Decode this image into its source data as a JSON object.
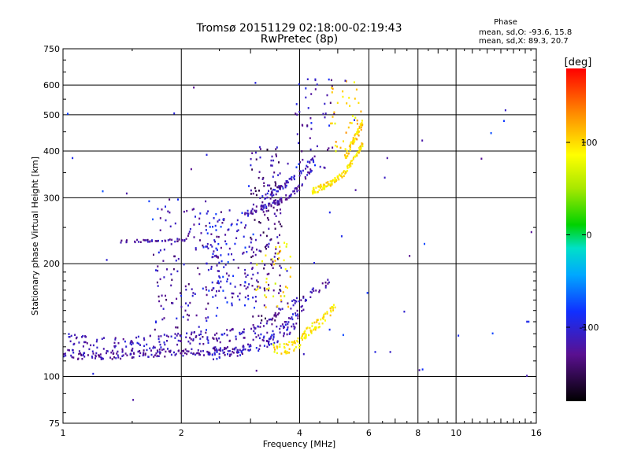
{
  "chart_data": {
    "type": "scatter",
    "title": "Tromsø 20151129 02:18:00-02:19:43",
    "subtitle": "RwPretec (8p)",
    "xlabel": "Frequency [MHz]",
    "ylabel": "Stationary phase Virtual Height [km]",
    "x_scale": "log",
    "y_scale": "log",
    "xlim": [
      1,
      16
    ],
    "ylim": [
      75,
      750
    ],
    "x_ticks": [
      1,
      2,
      4,
      6,
      8,
      10,
      16
    ],
    "y_ticks": [
      75,
      100,
      200,
      300,
      400,
      500,
      600,
      750
    ],
    "grid": true,
    "phase_stats": {
      "header": "Phase",
      "line_o": "mean, sd,O: -93.6, 15.8",
      "line_x": "mean, sd,X:  89.3, 20.7"
    },
    "colorbar": {
      "label": "[deg]",
      "ticks": [
        -100,
        0,
        100
      ],
      "range": [
        -180,
        180
      ],
      "colormap": "rainbow"
    },
    "traces": [
      {
        "kind": "band",
        "x": [
          1.0,
          1.1,
          1.25,
          1.5,
          1.8,
          2.1,
          2.5,
          2.9,
          3.0
        ],
        "y": [
          116,
          114,
          114,
          115,
          116,
          116,
          117,
          118,
          121
        ],
        "spread": 3,
        "phase": -120,
        "n": 190
      },
      {
        "kind": "band",
        "x": [
          1.0,
          1.2,
          1.4,
          1.7,
          2.0,
          2.3,
          2.6,
          2.9
        ],
        "y": [
          127,
          122,
          122,
          124,
          126,
          127,
          129,
          130
        ],
        "spread": 5,
        "phase": -115,
        "n": 130
      },
      {
        "kind": "band",
        "x": [
          2.4,
          2.7,
          3.0,
          3.2,
          3.5,
          3.8,
          4.0
        ],
        "y": [
          114,
          116,
          118,
          121,
          126,
          133,
          140
        ],
        "spread": 3,
        "phase": -110,
        "n": 60
      },
      {
        "kind": "band",
        "x": [
          3.0,
          3.3,
          3.6,
          4.0,
          4.2
        ],
        "y": [
          122,
          128,
          135,
          148,
          162
        ],
        "spread": 4,
        "phase": -110,
        "n": 50
      },
      {
        "kind": "band",
        "x": [
          3.0,
          3.3,
          3.6,
          4.0,
          4.4,
          4.8
        ],
        "y": [
          132,
          140,
          150,
          160,
          170,
          180
        ],
        "spread": 4,
        "phase": -120,
        "n": 55
      },
      {
        "kind": "band",
        "x": [
          3.4,
          3.7,
          4.0,
          4.2,
          4.5,
          4.8,
          5.0
        ],
        "y": [
          118,
          119,
          123,
          132,
          140,
          150,
          160
        ],
        "spread": 4,
        "phase": 95,
        "n": 110
      },
      {
        "kind": "band",
        "x": [
          2.9,
          3.2,
          3.6,
          4.0,
          4.3
        ],
        "y": [
          270,
          283,
          295,
          320,
          360
        ],
        "spread": 5,
        "phase": -115,
        "n": 90
      },
      {
        "kind": "band",
        "x": [
          3.2,
          3.6,
          4.0,
          4.4
        ],
        "y": [
          298,
          320,
          350,
          385
        ],
        "spread": 6,
        "phase": -110,
        "n": 60
      },
      {
        "kind": "band",
        "x": [
          4.3,
          4.6,
          4.9,
          5.2,
          5.5,
          5.8
        ],
        "y": [
          312,
          322,
          333,
          350,
          380,
          420
        ],
        "spread": 6,
        "phase": 95,
        "n": 120
      },
      {
        "kind": "band",
        "x": [
          5.2,
          5.5,
          5.8
        ],
        "y": [
          380,
          430,
          480
        ],
        "spread": 8,
        "phase": 100,
        "n": 55
      },
      {
        "kind": "band",
        "x": [
          1.4,
          1.6,
          1.9,
          2.1
        ],
        "y": [
          230,
          230,
          231,
          232
        ],
        "spread": 2,
        "phase": -120,
        "n": 35
      },
      {
        "kind": "cloud",
        "x": [
          1.7,
          2.6
        ],
        "y": [
          125,
          300
        ],
        "phase": -115,
        "n": 150
      },
      {
        "kind": "cloud",
        "x": [
          2.3,
          3.1
        ],
        "y": [
          150,
          280
        ],
        "phase": -105,
        "n": 120
      },
      {
        "kind": "cloud",
        "x": [
          3.0,
          3.6
        ],
        "y": [
          135,
          410
        ],
        "phase": -130,
        "n": 150
      },
      {
        "kind": "cloud",
        "x": [
          3.1,
          3.8
        ],
        "y": [
          150,
          230
        ],
        "phase": 90,
        "n": 40
      },
      {
        "kind": "cloud",
        "x": [
          3.9,
          4.9
        ],
        "y": [
          360,
          630
        ],
        "phase": -110,
        "n": 50
      },
      {
        "kind": "cloud",
        "x": [
          4.8,
          5.8
        ],
        "y": [
          390,
          620
        ],
        "phase": 100,
        "n": 40
      },
      {
        "kind": "cloud",
        "x": [
          1.0,
          16.0
        ],
        "y": [
          80,
          620
        ],
        "phase": -100,
        "n": 60
      }
    ]
  }
}
